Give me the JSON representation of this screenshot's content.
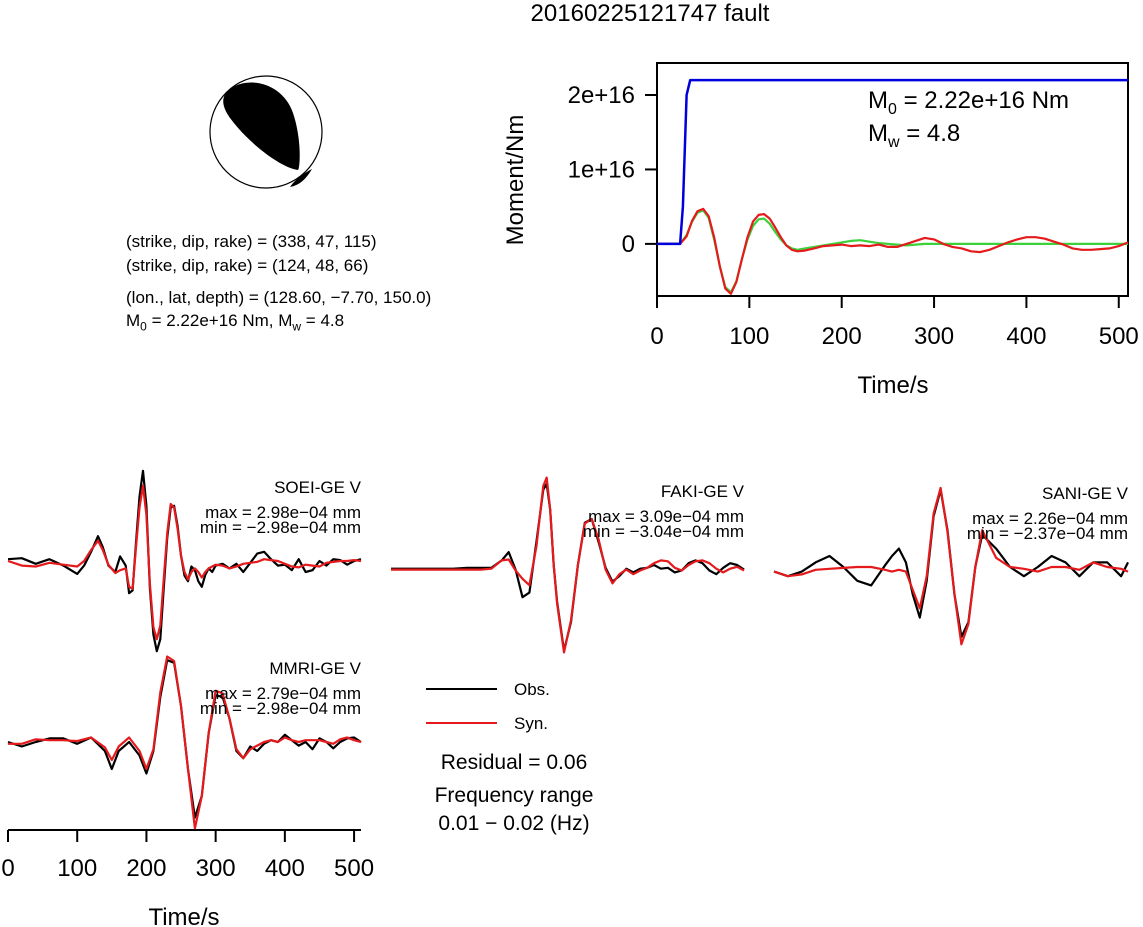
{
  "title": "20160225121747 fault",
  "mechanism": {
    "nodal1": "(strike, dip, rake) = (338, 47, 115)",
    "nodal2": "(strike, dip, rake) = (124, 48, 66)",
    "location": "(lon., lat, depth) = (128.60, −7.70, 150.0)",
    "moment_line": {
      "m0_prefix": "M",
      "m0_sub": "0",
      "m0_text": " = 2.22e+16 Nm, ",
      "mw_prefix": "M",
      "mw_sub": "w",
      "mw_text": " = 4.8"
    }
  },
  "colors": {
    "observed": "#000000",
    "synthetic": "#e41a1c",
    "moment": "#0000dd",
    "green": "#3ad13a"
  },
  "chart_data": [
    {
      "type": "line",
      "name": "moment-rate-function",
      "xlabel": "Time/s",
      "ylabel": "Moment/Nm",
      "xlim": [
        0,
        510
      ],
      "ylim": [
        -7000000000000000.0,
        2.43e+16
      ],
      "xticks": [
        0,
        100,
        200,
        300,
        400,
        500
      ],
      "xtick_labels": [
        "0",
        "100",
        "200",
        "300",
        "400",
        "500"
      ],
      "yticks": [
        0,
        1e+16,
        2e+16
      ],
      "ytick_labels": [
        "0",
        "1e+16",
        "2e+16"
      ],
      "annotation": {
        "m0_prefix": "M",
        "m0_sub": "0",
        "m0_text": " = 2.22e+16 Nm",
        "mw_prefix": "M",
        "mw_sub": "w",
        "mw_text": " = 4.8"
      },
      "series": [
        {
          "role": "moment",
          "x": [
            0,
            25,
            28,
            32,
            36,
            510
          ],
          "y": [
            0,
            0,
            5000000000000000.0,
            2e+16,
            2.2e+16,
            2.2e+16
          ]
        },
        {
          "role": "green",
          "x": [
            0,
            25,
            32,
            38,
            44,
            50,
            56,
            62,
            68,
            74,
            80,
            86,
            92,
            98,
            104,
            110,
            116,
            122,
            128,
            134,
            140,
            146,
            152,
            160,
            170,
            180,
            190,
            200,
            210,
            220,
            230,
            240,
            250,
            260,
            270,
            280,
            290,
            300,
            320,
            340,
            360,
            380,
            400,
            420,
            440,
            460,
            480,
            500,
            510
          ],
          "y": [
            0,
            0,
            1200000000000000.0,
            3000000000000000.0,
            4200000000000000.0,
            4500000000000000.0,
            3500000000000000.0,
            500000000000000.0,
            -3000000000000000.0,
            -5800000000000000.0,
            -6500000000000000.0,
            -5000000000000000.0,
            -2000000000000000.0,
            600000000000000.0,
            2400000000000000.0,
            3300000000000000.0,
            3400000000000000.0,
            2700000000000000.0,
            1600000000000000.0,
            600000000000000.0,
            -200000000000000.0,
            -600000000000000.0,
            -800000000000000.0,
            -600000000000000.0,
            -400000000000000.0,
            -200000000000000.0,
            0,
            200000000000000.0,
            400000000000000.0,
            500000000000000.0,
            300000000000000.0,
            100000000000000.0,
            0,
            -100000000000000.0,
            -200000000000000.0,
            -100000000000000.0,
            0,
            0,
            0,
            0,
            0,
            0,
            0,
            0,
            0,
            0,
            0,
            0,
            0
          ]
        },
        {
          "role": "synthetic",
          "x": [
            0,
            25,
            32,
            38,
            44,
            50,
            56,
            62,
            68,
            74,
            80,
            86,
            92,
            98,
            104,
            110,
            116,
            122,
            128,
            134,
            140,
            146,
            152,
            160,
            170,
            180,
            190,
            200,
            210,
            220,
            230,
            240,
            250,
            260,
            270,
            280,
            290,
            300,
            310,
            320,
            330,
            340,
            350,
            360,
            370,
            380,
            390,
            400,
            410,
            420,
            430,
            440,
            450,
            460,
            470,
            480,
            490,
            500,
            510
          ],
          "y": [
            0,
            0,
            1000000000000000.0,
            3100000000000000.0,
            4400000000000000.0,
            4700000000000000.0,
            3700000000000000.0,
            800000000000000.0,
            -3000000000000000.0,
            -6000000000000000.0,
            -6700000000000000.0,
            -5100000000000000.0,
            -2000000000000000.0,
            900000000000000.0,
            3000000000000000.0,
            3900000000000000.0,
            4000000000000000.0,
            3400000000000000.0,
            2200000000000000.0,
            900000000000000.0,
            -200000000000000.0,
            -800000000000000.0,
            -1000000000000000.0,
            -900000000000000.0,
            -600000000000000.0,
            -300000000000000.0,
            -200000000000000.0,
            -100000000000000.0,
            -300000000000000.0,
            -200000000000000.0,
            -300000000000000.0,
            -100000000000000.0,
            -400000000000000.0,
            -400000000000000.0,
            0,
            400000000000000.0,
            800000000000000.0,
            600000000000000.0,
            0,
            -400000000000000.0,
            -600000000000000.0,
            -1000000000000000.0,
            -1100000000000000.0,
            -800000000000000.0,
            -300000000000000.0,
            200000000000000.0,
            600000000000000.0,
            900000000000000.0,
            900000000000000.0,
            700000000000000.0,
            300000000000000.0,
            -100000000000000.0,
            -600000000000000.0,
            -800000000000000.0,
            -800000000000000.0,
            -700000000000000.0,
            -600000000000000.0,
            -300000000000000.0,
            200000000000000.0
          ]
        }
      ]
    },
    {
      "type": "line",
      "name": "waveform",
      "station": "SOEI-GE V",
      "max_label": "max = 2.98e−04 mm",
      "min_label": "min = −2.98e−04 mm",
      "x": [
        0,
        20,
        40,
        60,
        80,
        100,
        110,
        120,
        130,
        137,
        145,
        155,
        162,
        170,
        175,
        180,
        185,
        190,
        195,
        200,
        205,
        210,
        215,
        220,
        225,
        230,
        235,
        240,
        245,
        250,
        255,
        260,
        265,
        270,
        275,
        280,
        285,
        290,
        295,
        300,
        310,
        320,
        330,
        340,
        350,
        360,
        370,
        380,
        390,
        400,
        410,
        420,
        430,
        440,
        450,
        460,
        470,
        480,
        490,
        500,
        510
      ],
      "observed": [
        0.02,
        0.03,
        -0.03,
        0.02,
        -0.05,
        -0.14,
        -0.05,
        0.1,
        0.27,
        0.15,
        -0.05,
        -0.12,
        0.05,
        -0.05,
        -0.35,
        -0.32,
        0.2,
        0.7,
        0.98,
        0.6,
        -0.3,
        -0.8,
        -0.98,
        -0.85,
        -0.3,
        0.25,
        0.58,
        0.6,
        0.38,
        0.06,
        -0.16,
        -0.22,
        -0.06,
        -0.1,
        -0.22,
        -0.28,
        -0.15,
        -0.08,
        -0.12,
        -0.05,
        -0.03,
        -0.08,
        -0.03,
        -0.12,
        -0.02,
        0.08,
        0.1,
        0.02,
        -0.05,
        -0.04,
        -0.1,
        0.02,
        -0.12,
        -0.1,
        0.0,
        -0.05,
        0.02,
        0.01,
        -0.04,
        0.0,
        0.02
      ],
      "synthetic": [
        0.0,
        -0.05,
        -0.06,
        -0.02,
        -0.04,
        -0.06,
        0.0,
        0.12,
        0.22,
        0.12,
        -0.04,
        -0.13,
        -0.1,
        -0.08,
        -0.28,
        -0.3,
        0.15,
        0.58,
        0.82,
        0.5,
        -0.25,
        -0.72,
        -0.85,
        -0.7,
        -0.2,
        0.3,
        0.62,
        0.58,
        0.35,
        0.06,
        -0.12,
        -0.2,
        -0.12,
        -0.08,
        -0.12,
        -0.18,
        -0.12,
        -0.08,
        -0.06,
        -0.04,
        -0.05,
        -0.08,
        -0.06,
        -0.03,
        -0.02,
        -0.01,
        0.02,
        0.01,
        0.0,
        -0.03,
        -0.06,
        -0.07,
        -0.04,
        -0.05,
        -0.06,
        -0.02,
        -0.01,
        0.0,
        0.0,
        0.01,
        0.0
      ]
    },
    {
      "type": "line",
      "name": "waveform",
      "station": "FAKI-GE V",
      "max_label": "max = 3.09e−04 mm",
      "min_label": "min = −3.04e−04 mm",
      "x": [
        0,
        30,
        60,
        90,
        110,
        130,
        145,
        160,
        170,
        180,
        190,
        200,
        210,
        220,
        225,
        230,
        235,
        240,
        250,
        260,
        270,
        280,
        290,
        300,
        310,
        320,
        330,
        340,
        350,
        360,
        370,
        380,
        390,
        400,
        410,
        420,
        430,
        440,
        450,
        460,
        470,
        480,
        490,
        500,
        510
      ],
      "observed": [
        -0.04,
        -0.04,
        -0.04,
        -0.04,
        -0.03,
        -0.03,
        -0.03,
        0.05,
        0.14,
        -0.05,
        -0.35,
        -0.3,
        0.25,
        0.82,
        0.88,
        0.6,
        0.0,
        -0.4,
        -0.93,
        -0.62,
        0.0,
        0.46,
        0.5,
        0.25,
        -0.03,
        -0.18,
        -0.12,
        -0.04,
        -0.08,
        -0.04,
        -0.03,
        0.0,
        -0.04,
        -0.03,
        -0.08,
        -0.06,
        0.02,
        0.05,
        0.02,
        -0.06,
        -0.1,
        -0.03,
        0.02,
        0.0,
        -0.05
      ],
      "synthetic": [
        -0.05,
        -0.05,
        -0.05,
        -0.05,
        -0.05,
        -0.05,
        -0.04,
        0.05,
        0.06,
        -0.06,
        -0.15,
        -0.22,
        0.2,
        0.86,
        0.95,
        0.6,
        0.0,
        -0.42,
        -0.95,
        -0.6,
        0.0,
        0.45,
        0.5,
        0.28,
        -0.05,
        -0.2,
        -0.1,
        -0.05,
        -0.1,
        -0.06,
        -0.03,
        0.02,
        0.05,
        0.04,
        -0.03,
        -0.06,
        0.0,
        0.04,
        0.05,
        0.02,
        -0.04,
        -0.08,
        -0.04,
        -0.02,
        -0.06
      ]
    },
    {
      "type": "line",
      "name": "waveform",
      "station": "SANI-GE V",
      "max_label": "max = 2.26e−04 mm",
      "min_label": "min = −2.37e−04 mm",
      "x": [
        0,
        20,
        40,
        60,
        80,
        100,
        120,
        140,
        160,
        170,
        180,
        190,
        200,
        210,
        220,
        230,
        240,
        250,
        260,
        270,
        280,
        290,
        300,
        320,
        340,
        360,
        380,
        400,
        420,
        440,
        460,
        480,
        500,
        510
      ],
      "observed": [
        -0.05,
        -0.1,
        -0.05,
        0.05,
        0.12,
        0.0,
        -0.15,
        -0.2,
        0.02,
        0.12,
        0.2,
        0.05,
        -0.3,
        -0.55,
        -0.15,
        0.55,
        0.84,
        0.4,
        -0.3,
        -0.76,
        -0.6,
        0.0,
        0.35,
        0.2,
        0.0,
        -0.1,
        0.0,
        0.12,
        0.05,
        -0.1,
        0.05,
        0.05,
        -0.1,
        0.05
      ],
      "synthetic": [
        -0.05,
        -0.1,
        -0.08,
        -0.03,
        -0.02,
        -0.01,
        0.0,
        0.0,
        -0.03,
        -0.05,
        -0.03,
        -0.05,
        -0.25,
        -0.45,
        -0.1,
        0.58,
        0.86,
        0.38,
        -0.3,
        -0.84,
        -0.62,
        0.0,
        0.4,
        0.1,
        0.0,
        -0.02,
        -0.05,
        0.0,
        0.0,
        -0.03,
        0.05,
        0.0,
        -0.02,
        -0.05
      ]
    },
    {
      "type": "line",
      "name": "waveform",
      "station": "MMRI-GE V",
      "max_label": "max = 2.79e−04 mm",
      "min_label": "min = −2.98e−04 mm",
      "xlabel": "Time/s",
      "xlim": [
        0,
        510
      ],
      "xticks": [
        0,
        100,
        200,
        300,
        400,
        500
      ],
      "xtick_labels": [
        "0",
        "100",
        "200",
        "300",
        "400",
        "500"
      ],
      "x": [
        0,
        20,
        40,
        60,
        80,
        100,
        120,
        140,
        150,
        160,
        175,
        190,
        200,
        210,
        220,
        230,
        240,
        250,
        260,
        270,
        280,
        290,
        300,
        310,
        320,
        330,
        340,
        350,
        360,
        370,
        380,
        390,
        400,
        410,
        420,
        430,
        440,
        450,
        460,
        470,
        480,
        490,
        500,
        510
      ],
      "observed": [
        0.0,
        -0.05,
        0.0,
        0.04,
        0.04,
        -0.02,
        0.05,
        -0.1,
        -0.3,
        -0.1,
        0.0,
        -0.15,
        -0.35,
        -0.1,
        0.5,
        0.91,
        0.88,
        0.4,
        -0.3,
        -0.84,
        -0.6,
        0.1,
        0.52,
        0.5,
        0.26,
        -0.1,
        -0.18,
        -0.05,
        -0.1,
        -0.02,
        0.02,
        0.0,
        0.08,
        0.02,
        -0.04,
        0.0,
        -0.08,
        0.04,
        0.0,
        -0.07,
        0.0,
        0.04,
        0.05,
        0.0
      ],
      "synthetic": [
        -0.02,
        -0.02,
        0.03,
        0.02,
        0.02,
        0.01,
        0.05,
        -0.06,
        -0.2,
        -0.05,
        0.05,
        -0.1,
        -0.3,
        -0.08,
        0.55,
        0.95,
        0.9,
        0.4,
        -0.3,
        -0.96,
        -0.6,
        0.1,
        0.57,
        0.54,
        0.26,
        -0.08,
        -0.18,
        -0.08,
        -0.04,
        0.0,
        0.02,
        0.0,
        0.05,
        0.02,
        0.0,
        0.02,
        0.02,
        0.02,
        0.0,
        -0.02,
        0.03,
        0.05,
        0.02,
        0.0
      ]
    }
  ],
  "legend": {
    "observed": "Obs.",
    "synthetic": "Syn."
  },
  "residual": "Residual = 0.06",
  "freq_title": "Frequency range",
  "freq_value": "0.01 − 0.02 (Hz)"
}
